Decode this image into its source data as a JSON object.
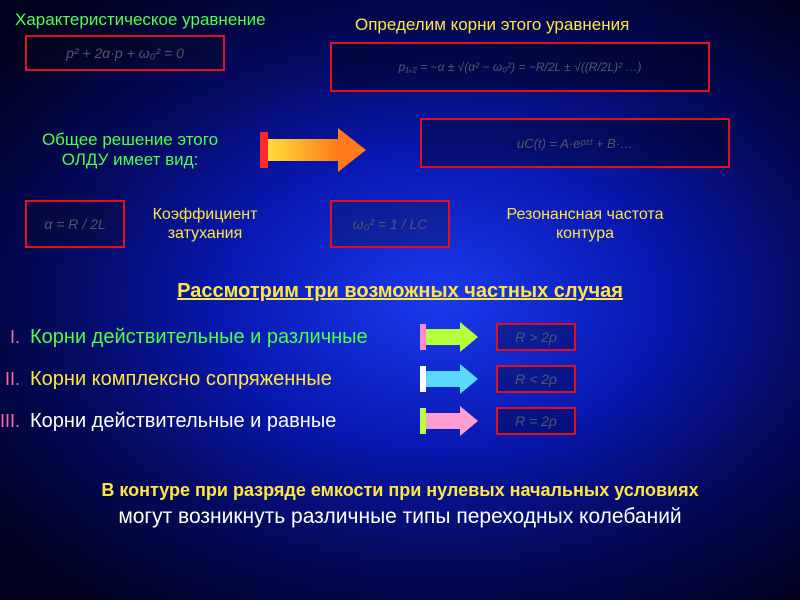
{
  "header": {
    "char_eq_label": "Характеристическое уравнение",
    "find_roots_label": "Определим корни этого уравнения",
    "char_eq_formula": "p² + 2α·p + ω₀² = 0",
    "roots_formula": "p₁,₂ = −α ± √(α² − ω₀²) = −R/2L ± √((R/2L)² …)"
  },
  "general": {
    "label_line1": "Общее решение этого",
    "label_line2": "ОЛДУ имеет вид:",
    "formula": "uC(t) = A·eᵖ¹ᵗ + B·…"
  },
  "params": {
    "alpha_formula": "α = R / 2L",
    "alpha_label": "Коэффициент затухания",
    "omega_formula": "ω₀² = 1 / LC",
    "omega_label": "Резонансная частота контура"
  },
  "cases": {
    "title": "Рассмотрим три возможных частных случая",
    "items": [
      {
        "num": "I.",
        "text": "Корни действительные и различные",
        "num_color": "#ff6aa6",
        "text_color": "#4CFF4C",
        "arrow_color": "#b6ff3a",
        "arrow_tail": "#ff8ad0",
        "box": "R > 2ρ"
      },
      {
        "num": "II.",
        "text": "Корни комплексно сопряженные",
        "num_color": "#ff6aa6",
        "text_color": "#FFE640",
        "arrow_color": "#5ad8ff",
        "arrow_tail": "#ffffff",
        "box": "R < 2ρ"
      },
      {
        "num": "III.",
        "text": "Корни действительные и равные",
        "num_color": "#ff6aa6",
        "text_color": "#ffffff",
        "arrow_color": "#ff9ed0",
        "arrow_tail": "#b6ff3a",
        "box": "R = 2ρ"
      }
    ]
  },
  "footer": {
    "line1": "В контуре при разряде емкости при нулевых начальных условиях",
    "line2": "могут возникнуть различные типы переходных колебаний"
  },
  "colors": {
    "red": "#e01020",
    "green": "#4CFF4C",
    "yellow": "#FFE640",
    "pink": "#ff6aa6",
    "arrow_orange_a": "#ffdc3a",
    "arrow_orange_b": "#ff7a18",
    "arrow_tail_red": "#ff2a2a"
  }
}
